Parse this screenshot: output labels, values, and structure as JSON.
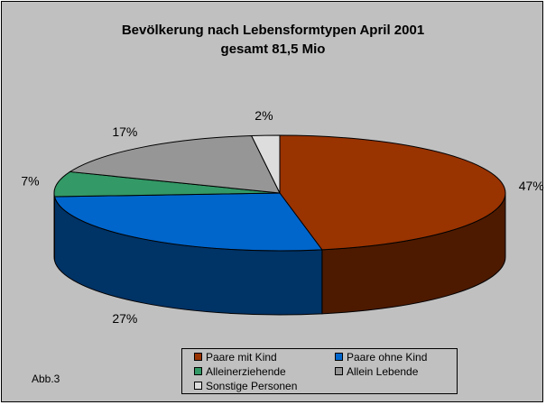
{
  "chart_data": {
    "type": "pie",
    "title": "Bevölkerung nach Lebensformtypen April 2001",
    "subtitle": "gesamt 81,5 Mio",
    "slices": [
      {
        "label": "Paare mit Kind",
        "value": 47,
        "value_label": "47%",
        "color": "#993300",
        "side_color": "#4d1a00"
      },
      {
        "label": "Paare ohne Kind",
        "value": 27,
        "value_label": "27%",
        "color": "#0066cc",
        "side_color": "#003366"
      },
      {
        "label": "Alleinerziehende",
        "value": 7,
        "value_label": "7%",
        "color": "#339966",
        "side_color": "#1a4d33"
      },
      {
        "label": "Allein Lebende",
        "value": 17,
        "value_label": "17%",
        "color": "#969696",
        "side_color": "#4b4b4b"
      },
      {
        "label": "Sonstige Personen",
        "value": 2,
        "value_label": "2%",
        "color": "#dddddd",
        "side_color": "#6e6e6e"
      }
    ],
    "legend_position": "bottom",
    "note": "Abb.3"
  }
}
